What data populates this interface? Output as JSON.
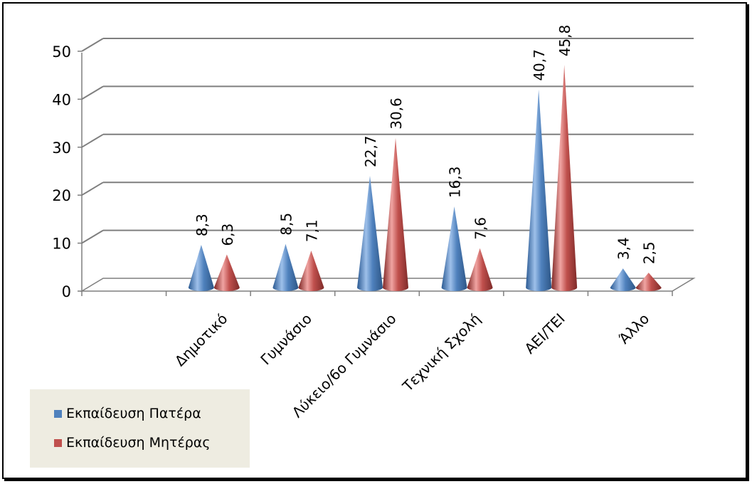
{
  "chart_data": {
    "type": "bar",
    "style": "3d-cone",
    "categories": [
      "Δημοτικό",
      "Γυμνάσιο",
      "Λύκειο/6ο Γυμνάσιο",
      "Τεχνική Σχολή",
      "ΑΕΙ/ΤΕΙ",
      "Άλλο"
    ],
    "series": [
      {
        "name": "Εκπαίδευση Πατέρα",
        "values": [
          8.3,
          8.5,
          22.7,
          16.3,
          40.7,
          3.4
        ],
        "labels": [
          "8,3",
          "8,5",
          "22,7",
          "16,3",
          "40,7",
          "3,4"
        ],
        "color": "#4f81bd"
      },
      {
        "name": "Εκπαίδευση Μητέρας",
        "values": [
          6.3,
          7.1,
          30.6,
          7.6,
          45.8,
          2.5
        ],
        "labels": [
          "6,3",
          "7,1",
          "30,6",
          "7,6",
          "45,8",
          "2,5"
        ],
        "color": "#c0504d"
      }
    ],
    "y_ticks": [
      "0",
      "10",
      "20",
      "30",
      "40",
      "50"
    ],
    "ylim": [
      0,
      50
    ],
    "grid": true,
    "legend_position": "bottom-left"
  }
}
